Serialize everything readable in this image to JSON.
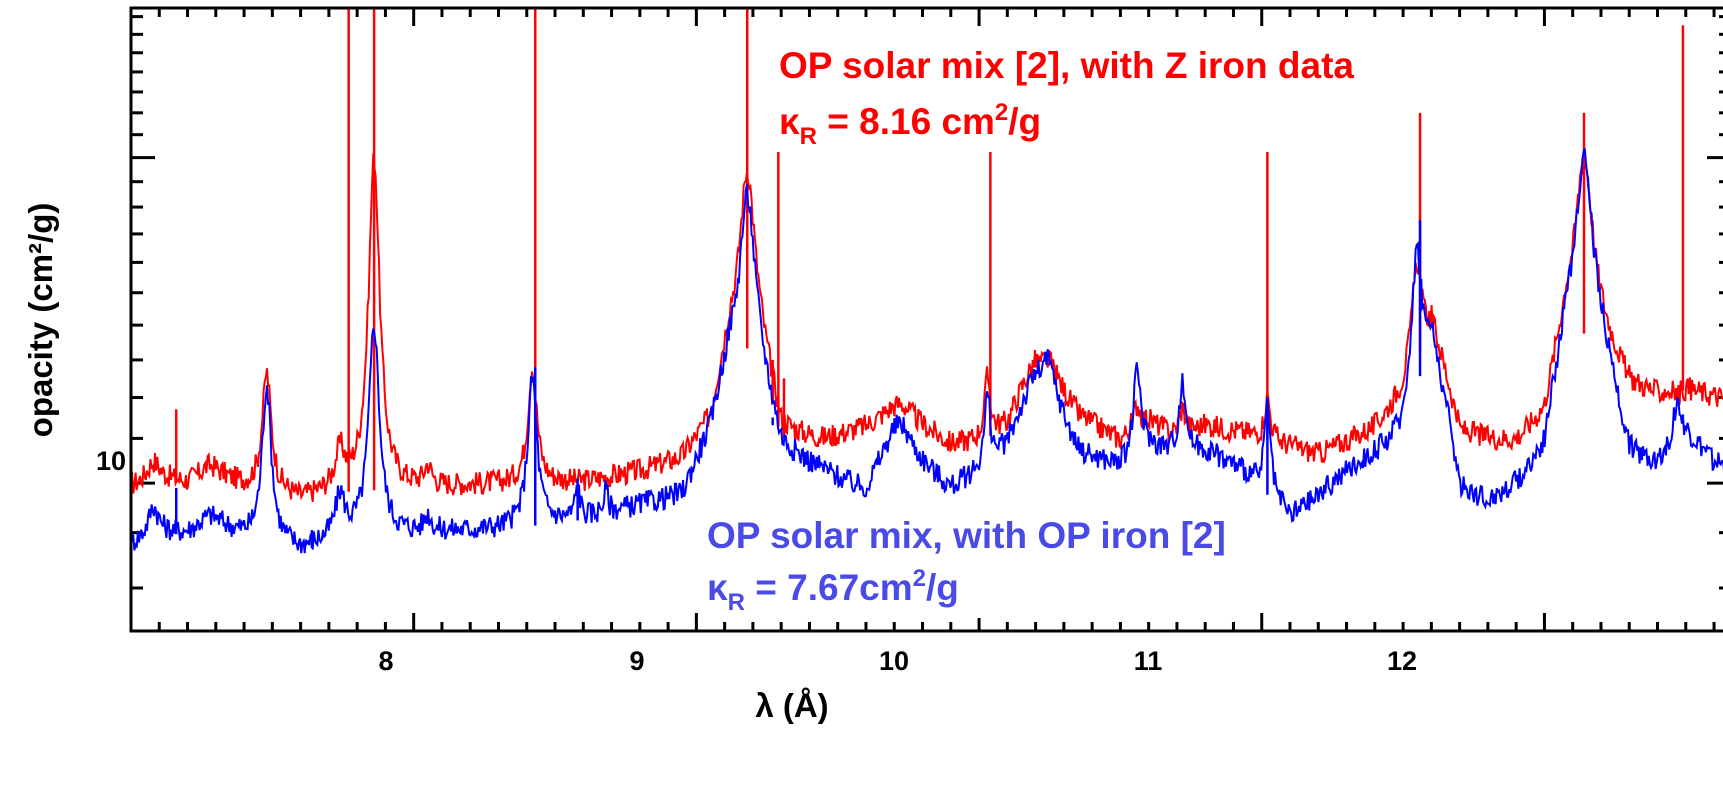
{
  "chart_data": {
    "type": "line",
    "title": "",
    "xlabel": "λ (Å)",
    "ylabel": "opacity (cm²/g)",
    "xlim": [
      7.0,
      12.66
    ],
    "ylim": [
      7.3,
      27.5
    ],
    "y_scale": "log",
    "grid": false,
    "x_ticks": [
      "8",
      "9",
      "10",
      "11",
      "12"
    ],
    "y_ticks": [
      "10"
    ],
    "colors": {
      "red": "#ff0000",
      "blue": "#0000ff",
      "blue_text": "#4a4ae6"
    },
    "series": [
      {
        "name": "OP solar mix [2], with Z iron data",
        "color": "#ff0000",
        "baseline": [
          [
            7.0,
            9.9
          ],
          [
            7.1,
            10.1
          ],
          [
            7.2,
            9.95
          ],
          [
            7.3,
            10.1
          ],
          [
            7.4,
            9.9
          ],
          [
            7.5,
            9.8
          ],
          [
            7.6,
            9.6
          ],
          [
            7.7,
            9.75
          ],
          [
            7.8,
            9.85
          ],
          [
            7.95,
            9.85
          ],
          [
            8.1,
            9.9
          ],
          [
            8.3,
            9.95
          ],
          [
            8.6,
            10.0
          ],
          [
            8.8,
            10.2
          ],
          [
            8.95,
            10.45
          ],
          [
            9.05,
            11.2
          ],
          [
            9.12,
            13.5
          ],
          [
            9.22,
            13.2
          ],
          [
            9.3,
            11.0
          ],
          [
            9.45,
            10.9
          ],
          [
            9.6,
            11.2
          ],
          [
            9.7,
            11.6
          ],
          [
            9.8,
            11.2
          ],
          [
            9.9,
            10.8
          ],
          [
            10.0,
            10.9
          ],
          [
            10.1,
            11.3
          ],
          [
            10.2,
            13.0
          ],
          [
            10.35,
            11.5
          ],
          [
            10.5,
            10.9
          ],
          [
            10.6,
            11.4
          ],
          [
            10.7,
            11.0
          ],
          [
            10.8,
            11.3
          ],
          [
            10.95,
            11.1
          ],
          [
            11.1,
            10.8
          ],
          [
            11.2,
            10.6
          ],
          [
            11.3,
            10.9
          ],
          [
            11.4,
            11.2
          ],
          [
            11.5,
            12.0
          ],
          [
            11.6,
            14.0
          ],
          [
            11.7,
            11.1
          ],
          [
            11.8,
            10.9
          ],
          [
            11.9,
            10.8
          ],
          [
            12.0,
            11.3
          ],
          [
            12.08,
            14.0
          ],
          [
            12.2,
            13.5
          ],
          [
            12.3,
            12.2
          ],
          [
            12.4,
            12.0
          ],
          [
            12.5,
            12.2
          ],
          [
            12.6,
            12.0
          ],
          [
            12.66,
            11.9
          ]
        ],
        "peaks": [
          [
            7.08,
            10.45,
            0.025
          ],
          [
            7.28,
            10.35,
            0.04
          ],
          [
            7.48,
            12.6,
            0.018
          ],
          [
            7.74,
            10.6,
            0.02
          ],
          [
            7.86,
            20.0,
            0.02
          ],
          [
            8.05,
            10.3,
            0.015
          ],
          [
            8.42,
            12.8,
            0.018
          ],
          [
            9.18,
            19.5,
            0.03
          ],
          [
            9.72,
            11.8,
            0.04
          ],
          [
            10.03,
            12.5,
            0.012
          ],
          [
            10.24,
            13.0,
            0.03
          ],
          [
            10.56,
            11.8,
            0.015
          ],
          [
            10.72,
            11.7,
            0.015
          ],
          [
            11.02,
            12.0,
            0.012
          ],
          [
            11.55,
            16.0,
            0.02
          ],
          [
            12.14,
            20.0,
            0.035
          ],
          [
            12.47,
            12.0,
            0.015
          ]
        ],
        "spikes": [
          [
            7.16,
            11.7
          ],
          [
            7.77,
            27.5
          ],
          [
            7.86,
            27.5
          ],
          [
            8.17,
            10.0
          ],
          [
            8.43,
            27.5
          ],
          [
            9.18,
            27.5
          ],
          [
            9.27,
            13.0
          ],
          [
            9.29,
            25.5
          ],
          [
            9.31,
            12.5
          ],
          [
            9.43,
            10.8
          ],
          [
            10.04,
            22.0
          ],
          [
            11.02,
            22.0
          ],
          [
            11.56,
            22.0
          ],
          [
            12.14,
            22.0
          ],
          [
            12.49,
            26.5
          ]
        ]
      },
      {
        "name": "OP solar mix, with OP iron [2]",
        "color": "#0000ff",
        "baseline": [
          [
            7.0,
            8.75
          ],
          [
            7.1,
            9.0
          ],
          [
            7.2,
            8.95
          ],
          [
            7.3,
            9.1
          ],
          [
            7.4,
            8.9
          ],
          [
            7.5,
            8.8
          ],
          [
            7.6,
            8.65
          ],
          [
            7.7,
            8.8
          ],
          [
            7.8,
            8.95
          ],
          [
            7.95,
            8.95
          ],
          [
            8.1,
            9.0
          ],
          [
            8.3,
            9.05
          ],
          [
            8.6,
            9.25
          ],
          [
            8.8,
            9.5
          ],
          [
            8.95,
            9.65
          ],
          [
            9.05,
            11.0
          ],
          [
            9.12,
            13.0
          ],
          [
            9.22,
            12.5
          ],
          [
            9.3,
            10.6
          ],
          [
            9.45,
            10.2
          ],
          [
            9.6,
            9.7
          ],
          [
            9.7,
            10.8
          ],
          [
            9.8,
            10.3
          ],
          [
            9.9,
            9.8
          ],
          [
            10.0,
            10.2
          ],
          [
            10.1,
            10.8
          ],
          [
            10.2,
            12.5
          ],
          [
            10.35,
            10.6
          ],
          [
            10.5,
            10.3
          ],
          [
            10.6,
            10.8
          ],
          [
            10.7,
            10.6
          ],
          [
            10.8,
            10.7
          ],
          [
            10.95,
            10.2
          ],
          [
            11.1,
            9.25
          ],
          [
            11.2,
            9.7
          ],
          [
            11.3,
            10.2
          ],
          [
            11.4,
            10.6
          ],
          [
            11.5,
            11.0
          ],
          [
            11.6,
            13.6
          ],
          [
            11.7,
            9.8
          ],
          [
            11.8,
            9.5
          ],
          [
            11.9,
            9.8
          ],
          [
            12.0,
            10.4
          ],
          [
            12.08,
            13.5
          ],
          [
            12.2,
            13.0
          ],
          [
            12.3,
            10.4
          ],
          [
            12.4,
            10.3
          ],
          [
            12.5,
            11.0
          ],
          [
            12.6,
            10.4
          ],
          [
            12.66,
            10.2
          ]
        ],
        "peaks": [
          [
            7.08,
            9.5,
            0.02
          ],
          [
            7.28,
            9.3,
            0.04
          ],
          [
            7.48,
            12.3,
            0.018
          ],
          [
            7.74,
            9.7,
            0.02
          ],
          [
            7.86,
            14.0,
            0.02
          ],
          [
            8.05,
            9.3,
            0.015
          ],
          [
            8.42,
            12.5,
            0.018
          ],
          [
            8.58,
            9.9,
            0.01
          ],
          [
            8.68,
            9.8,
            0.01
          ],
          [
            9.18,
            18.5,
            0.03
          ],
          [
            9.72,
            11.3,
            0.04
          ],
          [
            10.03,
            12.0,
            0.012
          ],
          [
            10.24,
            13.0,
            0.03
          ],
          [
            10.56,
            12.7,
            0.015
          ],
          [
            10.72,
            12.3,
            0.015
          ],
          [
            11.02,
            11.8,
            0.012
          ],
          [
            11.55,
            16.5,
            0.02
          ],
          [
            12.14,
            20.0,
            0.035
          ],
          [
            12.47,
            11.8,
            0.015
          ]
        ],
        "spikes": [
          [
            7.16,
            9.9
          ],
          [
            7.64,
            9.05
          ],
          [
            8.43,
            12.8
          ],
          [
            8.58,
            10.1
          ],
          [
            9.27,
            11.5
          ],
          [
            11.02,
            12.0
          ],
          [
            11.56,
            17.5
          ]
        ]
      }
    ]
  },
  "annotations": {
    "red_title": "OP solar mix [2], with Z iron data",
    "red_kappa_symbol": "κ",
    "red_kappa_sub": "R",
    "red_kappa_value": " = 8.16 cm",
    "red_kappa_sup": "2",
    "red_kappa_tail": "/g",
    "blue_title": "OP solar mix, with OP iron [2]",
    "blue_kappa_symbol": "κ",
    "blue_kappa_sub": "R",
    "blue_kappa_value": " = 7.67cm",
    "blue_kappa_sup": "2",
    "blue_kappa_tail": "/g"
  }
}
